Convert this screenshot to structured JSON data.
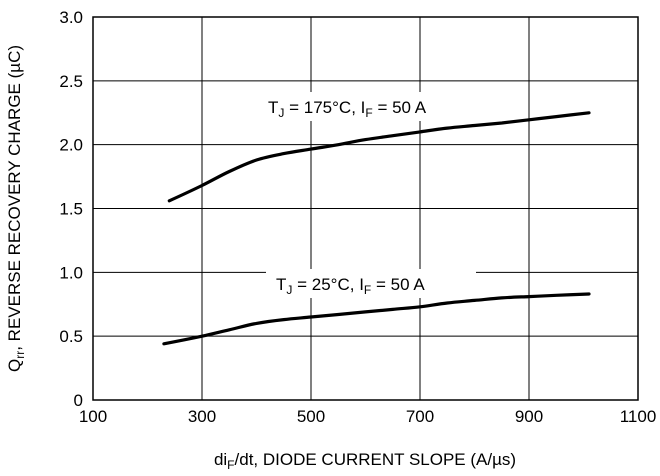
{
  "chart_data": {
    "type": "line",
    "xlabel": {
      "main": "di",
      "sub": "F",
      "rest": "/dt, DIODE CURRENT SLOPE (A/µs)"
    },
    "ylabel": {
      "main": "Q",
      "sub": "rr",
      "rest": ", REVERSE RECOVERY CHARGE (µC)"
    },
    "xlim": [
      100,
      1100
    ],
    "ylim": [
      0,
      3.0
    ],
    "xticks": [
      100,
      300,
      500,
      700,
      900,
      1100
    ],
    "yticks": [
      0,
      0.5,
      1.0,
      1.5,
      2.0,
      2.5,
      3.0
    ],
    "xtick_labels": [
      "100",
      "300",
      "500",
      "700",
      "900",
      "1100"
    ],
    "ytick_labels": [
      "0",
      "0.5",
      "1.0",
      "1.5",
      "2.0",
      "2.5",
      "3.0"
    ],
    "grid": true,
    "series": [
      {
        "label": {
          "t": "T",
          "tsub": "J",
          "mid": " = 175°C, I",
          "isub": "F",
          "end": " = 50 A"
        },
        "x": [
          240,
          300,
          350,
          400,
          450,
          500,
          550,
          600,
          650,
          700,
          750,
          800,
          850,
          900,
          950,
          1010
        ],
        "y": [
          1.56,
          1.68,
          1.79,
          1.88,
          1.93,
          1.965,
          2.0,
          2.04,
          2.07,
          2.1,
          2.13,
          2.15,
          2.17,
          2.195,
          2.22,
          2.25
        ]
      },
      {
        "label": {
          "t": "T",
          "tsub": "J",
          "mid": " = 25°C, I",
          "isub": "F",
          "end": " = 50 A"
        },
        "x": [
          230,
          300,
          350,
          400,
          450,
          500,
          550,
          600,
          650,
          700,
          750,
          800,
          850,
          900,
          950,
          1010
        ],
        "y": [
          0.44,
          0.5,
          0.55,
          0.6,
          0.63,
          0.65,
          0.67,
          0.69,
          0.71,
          0.73,
          0.76,
          0.78,
          0.8,
          0.81,
          0.82,
          0.83
        ]
      }
    ]
  }
}
